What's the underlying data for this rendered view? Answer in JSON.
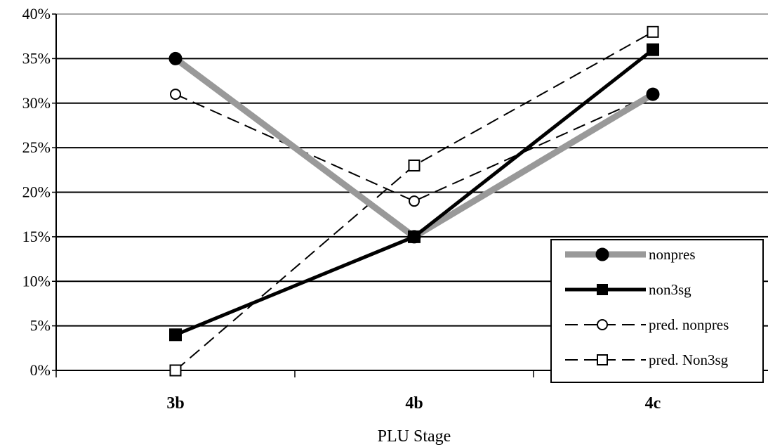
{
  "chart_data": {
    "type": "line",
    "title": "",
    "xlabel": "PLU Stage",
    "ylabel": "",
    "categories": [
      "3b",
      "4b",
      "4c"
    ],
    "ylim": [
      0,
      40
    ],
    "y_ticks": [
      "0%",
      "5%",
      "10%",
      "15%",
      "20%",
      "25%",
      "30%",
      "35%",
      "40%"
    ],
    "grid": true,
    "legend_position": "bottom-right",
    "series": [
      {
        "name": "nonpres",
        "values": [
          35,
          15,
          31
        ],
        "color": "#999999",
        "style": "thick-solid",
        "marker": "filled-circle"
      },
      {
        "name": "non3sg",
        "values": [
          4,
          15,
          36
        ],
        "color": "#000000",
        "style": "solid",
        "marker": "filled-square"
      },
      {
        "name": "pred. nonpres",
        "values": [
          31,
          19,
          31
        ],
        "color": "#000000",
        "style": "dashed",
        "marker": "open-circle"
      },
      {
        "name": "pred. Non3sg",
        "values": [
          0,
          23,
          38
        ],
        "color": "#000000",
        "style": "dashed",
        "marker": "open-square"
      }
    ]
  }
}
